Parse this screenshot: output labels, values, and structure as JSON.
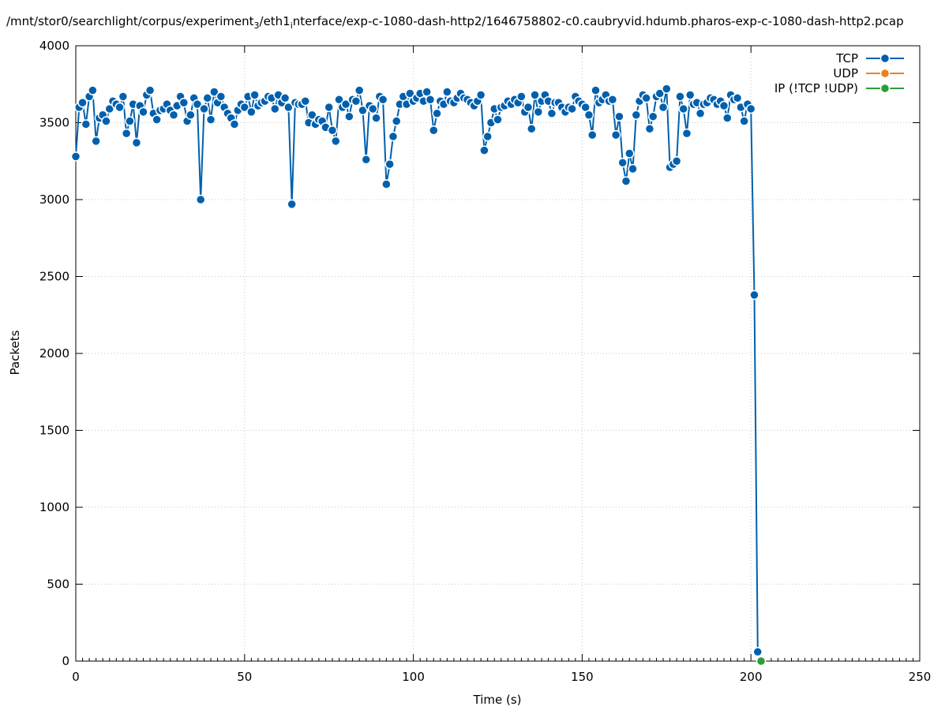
{
  "chart_data": {
    "type": "line",
    "title": "/mnt/stor0/searchlight/corpus/experiment",
    "title_sub1": "3",
    "title_mid": "/eth1",
    "title_sub2": "i",
    "title_end": "nterface/exp-c-1080-dash-http2/1646758802-c0.caubryvid.hdumb.pharos-exp-c-1080-dash-http2.pcap",
    "xlabel": "Time (s)",
    "ylabel": "Packets",
    "xlim": [
      0,
      250
    ],
    "ylim": [
      0,
      4000
    ],
    "xticks": [
      0,
      50,
      100,
      150,
      200,
      250
    ],
    "yticks": [
      0,
      500,
      1000,
      1500,
      2000,
      2500,
      3000,
      3500,
      4000
    ],
    "grid": true,
    "legend_position": "top-right",
    "series": [
      {
        "name": "TCP",
        "color": "#0060ad",
        "x": [
          0,
          1,
          2,
          3,
          4,
          5,
          6,
          7,
          8,
          9,
          10,
          11,
          12,
          13,
          14,
          15,
          16,
          17,
          18,
          19,
          20,
          21,
          22,
          23,
          24,
          25,
          26,
          27,
          28,
          29,
          30,
          31,
          32,
          33,
          34,
          35,
          36,
          37,
          38,
          39,
          40,
          41,
          42,
          43,
          44,
          45,
          46,
          47,
          48,
          49,
          50,
          51,
          52,
          53,
          54,
          55,
          56,
          57,
          58,
          59,
          60,
          61,
          62,
          63,
          64,
          65,
          66,
          67,
          68,
          69,
          70,
          71,
          72,
          73,
          74,
          75,
          76,
          77,
          78,
          79,
          80,
          81,
          82,
          83,
          84,
          85,
          86,
          87,
          88,
          89,
          90,
          91,
          92,
          93,
          94,
          95,
          96,
          97,
          98,
          99,
          100,
          101,
          102,
          103,
          104,
          105,
          106,
          107,
          108,
          109,
          110,
          111,
          112,
          113,
          114,
          115,
          116,
          117,
          118,
          119,
          120,
          121,
          122,
          123,
          124,
          125,
          126,
          127,
          128,
          129,
          130,
          131,
          132,
          133,
          134,
          135,
          136,
          137,
          138,
          139,
          140,
          141,
          142,
          143,
          144,
          145,
          146,
          147,
          148,
          149,
          150,
          151,
          152,
          153,
          154,
          155,
          156,
          157,
          158,
          159,
          160,
          161,
          162,
          163,
          164,
          165,
          166,
          167,
          168,
          169,
          170,
          171,
          172,
          173,
          174,
          175,
          176,
          177,
          178,
          179,
          180,
          181,
          182,
          183,
          184,
          185,
          186,
          187,
          188,
          189,
          190,
          191,
          192,
          193,
          194,
          195,
          196,
          197,
          198,
          199,
          200,
          201,
          202
        ],
        "values": [
          3280,
          3600,
          3630,
          3490,
          3670,
          3710,
          3380,
          3530,
          3550,
          3510,
          3590,
          3640,
          3620,
          3600,
          3670,
          3430,
          3510,
          3620,
          3370,
          3610,
          3570,
          3680,
          3710,
          3560,
          3520,
          3580,
          3590,
          3620,
          3580,
          3550,
          3610,
          3670,
          3630,
          3510,
          3550,
          3660,
          3620,
          3000,
          3590,
          3660,
          3520,
          3700,
          3630,
          3670,
          3600,
          3560,
          3530,
          3490,
          3580,
          3620,
          3600,
          3670,
          3570,
          3680,
          3610,
          3630,
          3640,
          3670,
          3660,
          3590,
          3680,
          3630,
          3660,
          3600,
          2970,
          3630,
          3620,
          3620,
          3640,
          3500,
          3550,
          3490,
          3520,
          3510,
          3470,
          3600,
          3450,
          3380,
          3650,
          3600,
          3620,
          3540,
          3650,
          3640,
          3710,
          3580,
          3260,
          3610,
          3590,
          3530,
          3670,
          3650,
          3100,
          3230,
          3410,
          3510,
          3620,
          3670,
          3620,
          3690,
          3640,
          3660,
          3690,
          3640,
          3700,
          3650,
          3450,
          3560,
          3640,
          3620,
          3700,
          3640,
          3630,
          3660,
          3690,
          3660,
          3650,
          3630,
          3610,
          3640,
          3680,
          3320,
          3410,
          3500,
          3590,
          3520,
          3600,
          3610,
          3640,
          3620,
          3650,
          3630,
          3670,
          3570,
          3600,
          3460,
          3680,
          3570,
          3640,
          3680,
          3640,
          3560,
          3630,
          3630,
          3600,
          3570,
          3600,
          3590,
          3670,
          3640,
          3620,
          3600,
          3550,
          3420,
          3710,
          3630,
          3650,
          3680,
          3640,
          3650,
          3420,
          3540,
          3240,
          3120,
          3300,
          3200,
          3550,
          3640,
          3680,
          3660,
          3460,
          3540,
          3670,
          3690,
          3600,
          3720,
          3210,
          3230,
          3250,
          3670,
          3590,
          3430,
          3680,
          3620,
          3630,
          3560,
          3620,
          3630,
          3660,
          3650,
          3620,
          3640,
          3610,
          3530,
          3680,
          3650,
          3660,
          3600,
          3510,
          3620,
          3590,
          2380,
          60
        ]
      },
      {
        "name": "UDP",
        "color": "#ef7f1a",
        "x": [],
        "values": []
      },
      {
        "name": "IP (!TCP  !UDP)",
        "color": "#2b9c3a",
        "x": [
          203
        ],
        "values": [
          0
        ]
      }
    ]
  }
}
